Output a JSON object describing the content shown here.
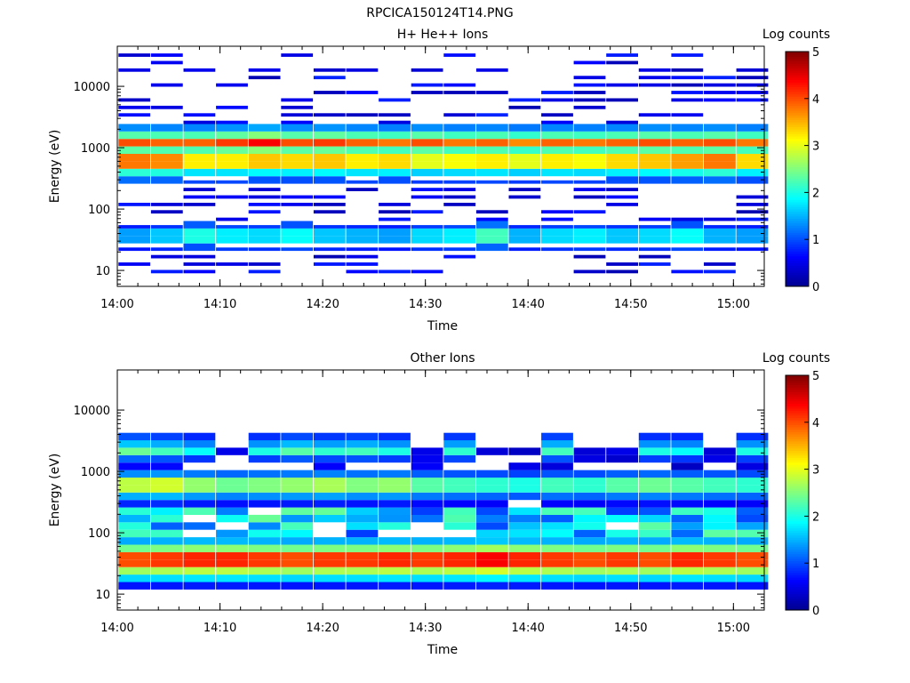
{
  "figure": {
    "title": "RPCICA150124T14.PNG",
    "colormap": [
      "#00008f",
      "#0000ff",
      "#0080ff",
      "#00ffff",
      "#80ff80",
      "#ffff00",
      "#ff8000",
      "#ff0000",
      "#800000"
    ]
  },
  "chart_data": [
    {
      "type": "heatmap",
      "title": "H+ He++ Ions",
      "xlabel": "Time",
      "ylabel": "Energy (eV)",
      "yscale": "log",
      "xlim": [
        "14:00",
        "15:03"
      ],
      "ylim": [
        5.5,
        45000
      ],
      "xticks": [
        "14:00",
        "14:10",
        "14:20",
        "14:30",
        "14:40",
        "14:50",
        "15:00"
      ],
      "yticks": [
        "10",
        "100",
        "1000",
        "10000"
      ],
      "colorbar": {
        "label": "Log counts",
        "ticks": [
          "0",
          "1",
          "2",
          "3",
          "4",
          "5"
        ],
        "range": [
          0,
          5
        ]
      },
      "time_bins": [
        "14:01:40",
        "14:04:50",
        "14:08:00",
        "14:11:10",
        "14:14:20",
        "14:17:30",
        "14:20:40",
        "14:23:50",
        "14:27:00",
        "14:30:10",
        "14:33:20",
        "14:36:30",
        "14:39:40",
        "14:42:50",
        "14:46:00",
        "14:49:10",
        "14:52:20",
        "14:55:30",
        "14:58:40",
        "15:01:50"
      ],
      "energy_bands": [
        {
          "range": [
            470,
            720
          ],
          "levels": [
            3.8,
            3.7,
            3.2,
            3.2,
            3.4,
            3.3,
            3.4,
            3.2,
            3.3,
            3.0,
            3.1,
            3.2,
            3.0,
            3.2,
            3.1,
            3.3,
            3.4,
            3.6,
            3.8,
            3.3
          ]
        },
        {
          "range": [
            1050,
            1380
          ],
          "levels": [
            4.0,
            3.9,
            3.9,
            4.1,
            4.4,
            4.0,
            4.1,
            3.9,
            3.8,
            4.0,
            3.8,
            3.9,
            3.7,
            3.9,
            3.8,
            3.9,
            4.0,
            3.9,
            4.0,
            3.8
          ]
        },
        {
          "range": [
            30,
            46
          ],
          "levels": [
            1.4,
            1.6,
            2.0,
            1.8,
            1.7,
            1.9,
            1.6,
            1.5,
            1.4,
            1.7,
            1.8,
            2.2,
            1.5,
            1.7,
            1.8,
            1.6,
            1.7,
            1.9,
            1.5,
            1.4
          ]
        }
      ]
    },
    {
      "type": "heatmap",
      "title": "Other Ions",
      "xlabel": "Time",
      "ylabel": "Energy (eV)",
      "yscale": "log",
      "xlim": [
        "14:00",
        "15:03"
      ],
      "ylim": [
        5.5,
        45000
      ],
      "xticks": [
        "14:00",
        "14:10",
        "14:20",
        "14:30",
        "14:40",
        "14:50",
        "15:00"
      ],
      "yticks": [
        "10",
        "100",
        "1000",
        "10000"
      ],
      "colorbar": {
        "label": "Log counts",
        "ticks": [
          "0",
          "1",
          "2",
          "3",
          "4",
          "5"
        ],
        "range": [
          0,
          5
        ]
      },
      "time_bins": [
        "14:01:40",
        "14:04:50",
        "14:08:00",
        "14:11:10",
        "14:14:20",
        "14:17:30",
        "14:20:40",
        "14:23:50",
        "14:27:00",
        "14:30:10",
        "14:33:20",
        "14:36:30",
        "14:39:40",
        "14:42:50",
        "14:46:00",
        "14:49:10",
        "14:52:20",
        "14:55:30",
        "14:58:40",
        "15:01:50"
      ],
      "energy_bands": [
        {
          "range": [
            25,
            50
          ],
          "levels": [
            4.0,
            4.1,
            4.2,
            4.2,
            4.1,
            4.0,
            4.1,
            4.1,
            4.2,
            4.1,
            4.2,
            4.4,
            4.2,
            4.1,
            4.0,
            4.1,
            4.0,
            4.2,
            4.1,
            4.0
          ]
        },
        {
          "range": [
            480,
            700
          ],
          "levels": [
            2.8,
            2.9,
            2.6,
            2.4,
            2.5,
            2.6,
            2.7,
            2.5,
            2.6,
            2.3,
            2.2,
            2.1,
            2.0,
            2.2,
            2.1,
            2.3,
            2.4,
            2.3,
            2.2,
            2.1
          ]
        },
        {
          "range": [
            2100,
            2700
          ],
          "levels": [
            2.4,
            2.2,
            1.9,
            0.5,
            2.0,
            2.3,
            2.1,
            2.2,
            2.0,
            0.5,
            2.1,
            0.4,
            0.3,
            2.2,
            0.4,
            0.5,
            2.0,
            1.9,
            0.4,
            2.0
          ]
        }
      ]
    }
  ]
}
